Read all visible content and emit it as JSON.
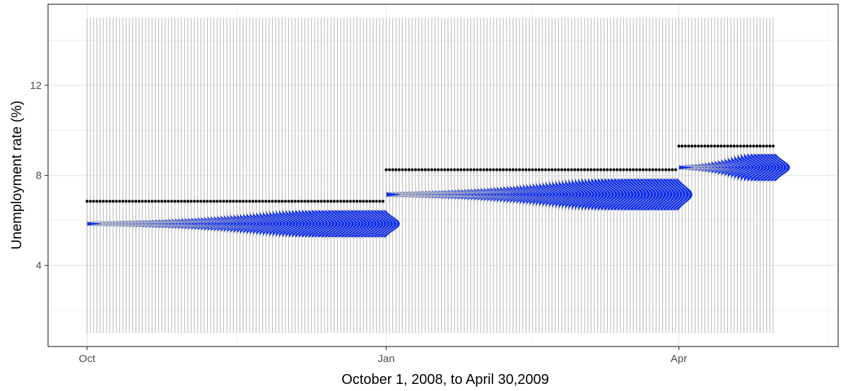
{
  "chart_data": {
    "type": "line",
    "xlabel": "October 1, 2008, to April 30,2009",
    "ylabel": "Unemployment rate (%)",
    "x_ticks": [
      "Oct",
      "Jan",
      "Apr"
    ],
    "x_tick_dates": [
      "2008-10-01",
      "2009-01-01",
      "2009-04-01"
    ],
    "y_ticks": [
      "4",
      "8",
      "12"
    ],
    "xlim": [
      "2008-09-19",
      "2009-05-20"
    ],
    "ylim": [
      0.4,
      15.6
    ],
    "grid": true,
    "panel": "bw",
    "colors": {
      "band": "#bdbdbd",
      "density": "#0a2cf2",
      "point": "#000000"
    },
    "series": [
      {
        "segment": "October-December",
        "x_start": "2008-10-01",
        "x_end": "2008-12-31",
        "y_reported": 6.85,
        "forecast_center": 5.85,
        "forecast_range": [
          5.25,
          6.45
        ],
        "band": [
          1.0,
          15.0
        ]
      },
      {
        "segment": "January-March",
        "x_start": "2009-01-01",
        "x_end": "2009-03-31",
        "y_reported": 8.25,
        "forecast_center": 7.15,
        "forecast_range": [
          6.45,
          7.85
        ],
        "band": [
          1.0,
          15.0
        ]
      },
      {
        "segment": "April",
        "x_start": "2009-04-01",
        "x_end": "2009-04-30",
        "y_reported": 9.3,
        "forecast_center": 8.35,
        "forecast_range": [
          7.75,
          8.95
        ],
        "band": [
          1.0,
          15.0
        ]
      }
    ]
  }
}
